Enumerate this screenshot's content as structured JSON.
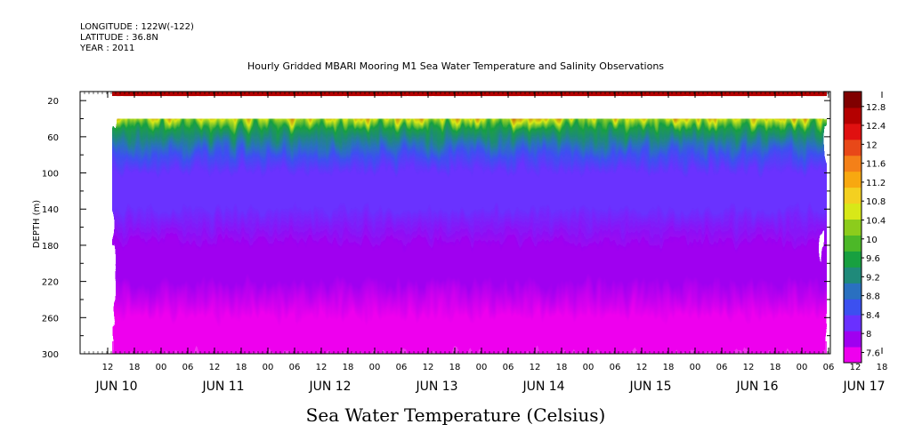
{
  "header": {
    "longitude": "LONGITUDE : 122W(-122)",
    "latitude": "LATITUDE : 36.8N",
    "year": "YEAR : 2011"
  },
  "colors": {
    "palette": [
      "#ee00ee",
      "#a000f0",
      "#6a30ff",
      "#3c50f0",
      "#2a70c0",
      "#1f8a7a",
      "#18a040",
      "#4cb828",
      "#8ccc1c",
      "#d8e818",
      "#f4d020",
      "#f8a810",
      "#f48018",
      "#e84818",
      "#e01010",
      "#b40000",
      "#800000"
    ]
  },
  "chart_data": {
    "type": "heatmap",
    "title": "Hourly Gridded MBARI Mooring M1 Sea Water Temperature and Salinity Observations",
    "xlabel": "Sea Water Temperature (Celsius)",
    "ylabel": "DEPTH (m)",
    "ylim": [
      300,
      10
    ],
    "y_ticks": [
      20,
      60,
      100,
      140,
      180,
      220,
      260,
      300
    ],
    "x_hour_ticks": [
      "12",
      "18",
      "00",
      "06",
      "12",
      "18",
      "00",
      "06",
      "12",
      "18",
      "00",
      "06",
      "12",
      "18",
      "00",
      "06",
      "12",
      "18",
      "00",
      "06",
      "12",
      "18",
      "00",
      "06",
      "12",
      "18",
      "00",
      "06",
      "12",
      "18",
      "00",
      "06"
    ],
    "x_day_labels": [
      "JUN 10",
      "JUN 11",
      "JUN 12",
      "JUN 13",
      "JUN 14",
      "JUN 15",
      "JUN 16",
      "JUN 17"
    ],
    "colorbar_labels": [
      "12.8",
      "12.4",
      "12",
      "11.6",
      "11.2",
      "10.8",
      "10.4",
      "10",
      "9.6",
      "9.2",
      "8.8",
      "8.4",
      "8",
      "7.6"
    ],
    "colorbar_range": [
      7.6,
      13.0
    ],
    "no_data_depth_range": [
      15,
      40
    ],
    "depth_profile": [
      {
        "depth": 10,
        "temp": 12.6
      },
      {
        "depth": 20,
        "temp": 12.4
      },
      {
        "depth": 40,
        "temp": 10.6
      },
      {
        "depth": 50,
        "temp": 9.8
      },
      {
        "depth": 60,
        "temp": 9.2
      },
      {
        "depth": 70,
        "temp": 8.9
      },
      {
        "depth": 80,
        "temp": 8.6
      },
      {
        "depth": 100,
        "temp": 8.45
      },
      {
        "depth": 140,
        "temp": 8.35
      },
      {
        "depth": 180,
        "temp": 8.15
      },
      {
        "depth": 220,
        "temp": 8.0
      },
      {
        "depth": 260,
        "temp": 7.85
      },
      {
        "depth": 290,
        "temp": 7.7
      },
      {
        "depth": 300,
        "temp": 7.65
      }
    ]
  }
}
